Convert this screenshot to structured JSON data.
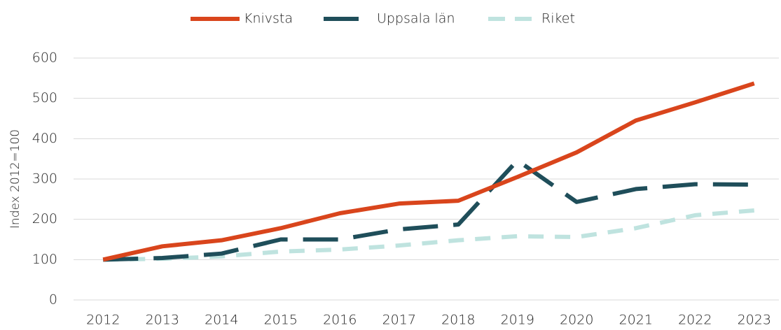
{
  "chart_data": {
    "type": "line",
    "categories": [
      "2012",
      "2013",
      "2014",
      "2015",
      "2016",
      "2017",
      "2018",
      "2019",
      "2020",
      "2021",
      "2022",
      "2023"
    ],
    "y_label": "Index 2012=100",
    "series": [
      {
        "name": "Knivsta",
        "color": "#d9451c",
        "dash": "solid",
        "values": [
          100,
          133,
          148,
          178,
          215,
          239,
          246,
          305,
          366,
          445,
          490,
          537
        ]
      },
      {
        "name": "Uppsala län",
        "color": "#1f4e5a",
        "dash": "long",
        "values": [
          100,
          104,
          115,
          150,
          150,
          175,
          187,
          346,
          243,
          275,
          287,
          286
        ]
      },
      {
        "name": "Riket",
        "color": "#bfe3df",
        "dash": "short",
        "values": [
          100,
          102,
          108,
          120,
          125,
          135,
          148,
          158,
          156,
          178,
          210,
          222
        ]
      }
    ],
    "ylim": [
      0,
      600
    ],
    "yticks": [
      0,
      100,
      200,
      300,
      400,
      500,
      600
    ],
    "grid": true,
    "legend": "top"
  }
}
